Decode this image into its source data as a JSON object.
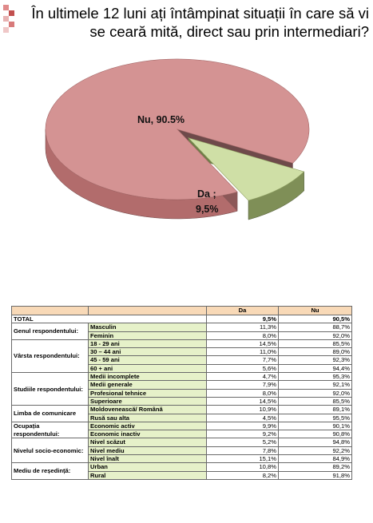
{
  "title": "În ultimele 12 luni ați întâmpinat situații în care să vi se ceară mită, direct sau prin intermediari?",
  "chart_data": {
    "type": "pie",
    "slices": [
      {
        "label": "Nu, 90.5%",
        "value": 90.5,
        "color": "#d49393"
      },
      {
        "label_line1": "Da ;",
        "label_line2": "9,5%",
        "value": 9.5,
        "color": "#cfdfa6"
      }
    ],
    "exploded": "Da",
    "style": "3d"
  },
  "table": {
    "headers": [
      "",
      "",
      "Da",
      "Nu"
    ],
    "total": {
      "label": "TOTAL",
      "da": "9,5%",
      "nu": "90,5%"
    },
    "groups": [
      {
        "label": "Genul respondentului:",
        "rows": [
          {
            "cat": "Masculin",
            "da": "11,3%",
            "nu": "88,7%"
          },
          {
            "cat": "Feminin",
            "da": "8,0%",
            "nu": "92,0%"
          }
        ]
      },
      {
        "label": "Vârsta respondentului:",
        "rows": [
          {
            "cat": "18 - 29 ani",
            "da": "14,5%",
            "nu": "85,5%"
          },
          {
            "cat": "30 – 44 ani",
            "da": "11,0%",
            "nu": "89,0%"
          },
          {
            "cat": "45 - 59 ani",
            "da": "7,7%",
            "nu": "92,3%"
          },
          {
            "cat": "60 + ani",
            "da": "5,6%",
            "nu": "94,4%"
          }
        ]
      },
      {
        "label": "Studiile respondentului:",
        "rows": [
          {
            "cat": "Medii incomplete",
            "da": "4,7%",
            "nu": "95,3%"
          },
          {
            "cat": "Medii generale",
            "da": "7,9%",
            "nu": "92,1%"
          },
          {
            "cat": "Profesional tehnice",
            "da": "8,0%",
            "nu": "92,0%"
          },
          {
            "cat": "Superioare",
            "da": "14,5%",
            "nu": "85,5%"
          }
        ]
      },
      {
        "label": "Limba de comunicare",
        "rows": [
          {
            "cat": "Moldovenească/ Română",
            "da": "10,9%",
            "nu": "89,1%"
          },
          {
            "cat": "Rusă sau alta",
            "da": "4,5%",
            "nu": "95,5%"
          }
        ]
      },
      {
        "label": "Ocupația respondentului:",
        "rows": [
          {
            "cat": "Economic activ",
            "da": "9,9%",
            "nu": "90,1%"
          },
          {
            "cat": "Economic inactiv",
            "da": "9,2%",
            "nu": "90,8%"
          }
        ]
      },
      {
        "label": "Nivelul socio-economic:",
        "rows": [
          {
            "cat": "Nivel scăzut",
            "da": "5,2%",
            "nu": "94,8%"
          },
          {
            "cat": "Nivel mediu",
            "da": "7,8%",
            "nu": "92,2%"
          },
          {
            "cat": "Nivel înalt",
            "da": "15,1%",
            "nu": "84,9%"
          }
        ]
      },
      {
        "label": "Mediu de reședință:",
        "rows": [
          {
            "cat": "Urban",
            "da": "10,8%",
            "nu": "89,2%"
          },
          {
            "cat": "Rural",
            "da": "8,2%",
            "nu": "91,8%"
          }
        ]
      }
    ]
  }
}
